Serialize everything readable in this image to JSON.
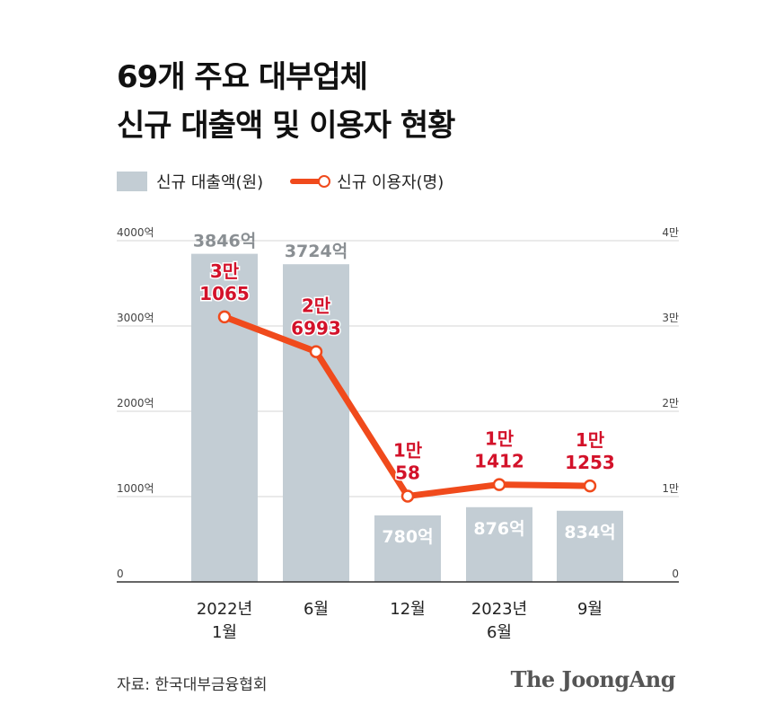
{
  "header": {
    "title_line1": "69개 주요 대부업체",
    "title_line2": "신규 대출액 및 이용자 현황"
  },
  "legend": {
    "bar_label": "신규 대출액(원)",
    "line_label": "신규 이용자(명)"
  },
  "colors": {
    "bar": "#c3cdd4",
    "line": "#f04a1c",
    "line_label": "#d3122a",
    "bar_label_outside": "#8a8f93",
    "bar_label_inside": "#ffffff"
  },
  "chart_data": {
    "type": "bar",
    "categories": [
      "2022년\n1월",
      "6월",
      "12월",
      "2023년\n6월",
      "9월"
    ],
    "series": [
      {
        "name": "신규 대출액(원)",
        "type": "bar",
        "axis": "left",
        "values": [
          3846,
          3724,
          780,
          876,
          834
        ],
        "labels": [
          "3846억",
          "3724억",
          "780억",
          "876억",
          "834억"
        ]
      },
      {
        "name": "신규 이용자(명)",
        "type": "line",
        "axis": "right",
        "values": [
          31065,
          26993,
          10058,
          11412,
          11253
        ],
        "labels": [
          "3만\n1065",
          "2만\n6993",
          "1만\n58",
          "1만\n1412",
          "1만\n1253"
        ]
      }
    ],
    "left_axis": {
      "ticks": [
        0,
        1000,
        2000,
        3000,
        4000
      ],
      "tick_labels": [
        "0",
        "1000억",
        "2000억",
        "3000억",
        "4000억"
      ],
      "ylim": [
        0,
        4000
      ]
    },
    "right_axis": {
      "ticks": [
        0,
        10000,
        20000,
        30000,
        40000
      ],
      "tick_labels": [
        "0",
        "1만",
        "2만",
        "3만",
        "4만"
      ],
      "ylim": [
        0,
        40000
      ]
    },
    "grid": true,
    "legend_position": "top-left"
  },
  "footer": {
    "source": "자료: 한국대부금융협회",
    "brand": "The JoongAng"
  }
}
